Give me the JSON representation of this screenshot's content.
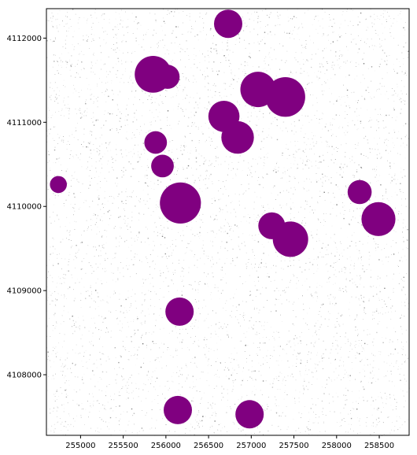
{
  "chart_data": {
    "type": "scatter",
    "title": "",
    "xlabel": "",
    "ylabel": "",
    "xlim": [
      254600,
      258850
    ],
    "ylim": [
      4107280,
      4112350
    ],
    "grid": false,
    "legend": "none",
    "x_ticks": [
      {
        "value": 255000,
        "label": "255000"
      },
      {
        "value": 255500,
        "label": "255500"
      },
      {
        "value": 256000,
        "label": "256000"
      },
      {
        "value": 256500,
        "label": "256500"
      },
      {
        "value": 257000,
        "label": "257000"
      },
      {
        "value": 257500,
        "label": "257500"
      },
      {
        "value": 258000,
        "label": "258000"
      },
      {
        "value": 258500,
        "label": "258500"
      }
    ],
    "y_ticks": [
      {
        "value": 4108000,
        "label": "4108000"
      },
      {
        "value": 4109000,
        "label": "4109000"
      },
      {
        "value": 4110000,
        "label": "4110000"
      },
      {
        "value": 4111000,
        "label": "4111000"
      },
      {
        "value": 4112000,
        "label": "4112000"
      }
    ],
    "series": [
      {
        "color": "#800080",
        "points": [
          {
            "x": 256730,
            "y": 4112170,
            "size": 1.0
          },
          {
            "x": 255850,
            "y": 4111570,
            "size": 1.3
          },
          {
            "x": 256020,
            "y": 4111540,
            "size": 0.85
          },
          {
            "x": 257080,
            "y": 4111390,
            "size": 1.25
          },
          {
            "x": 257400,
            "y": 4111300,
            "size": 1.4
          },
          {
            "x": 256680,
            "y": 4111070,
            "size": 1.1
          },
          {
            "x": 256840,
            "y": 4110820,
            "size": 1.15
          },
          {
            "x": 255880,
            "y": 4110760,
            "size": 0.8
          },
          {
            "x": 255960,
            "y": 4110480,
            "size": 0.8
          },
          {
            "x": 254740,
            "y": 4110260,
            "size": 0.6
          },
          {
            "x": 256170,
            "y": 4110040,
            "size": 1.45
          },
          {
            "x": 258270,
            "y": 4110170,
            "size": 0.85
          },
          {
            "x": 258490,
            "y": 4109850,
            "size": 1.2
          },
          {
            "x": 257240,
            "y": 4109770,
            "size": 0.95
          },
          {
            "x": 257460,
            "y": 4109610,
            "size": 1.25
          },
          {
            "x": 256160,
            "y": 4108750,
            "size": 1.0
          },
          {
            "x": 256140,
            "y": 4107580,
            "size": 1.0
          },
          {
            "x": 256980,
            "y": 4107530,
            "size": 1.0
          }
        ]
      }
    ]
  }
}
